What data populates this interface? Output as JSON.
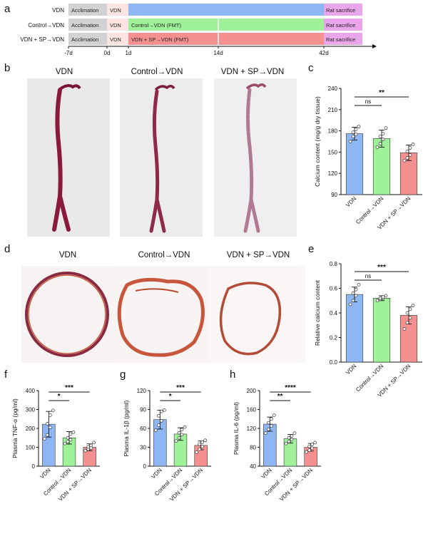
{
  "colors": {
    "vdn": "#8eb6f2",
    "control": "#9ff29a",
    "sp": "#f59090",
    "acclimation": "#d2d2d2",
    "vdn_phase": "#fde4e2",
    "sacrifice": "#e9a6ea",
    "tissue": "#8a1a3c",
    "section_stain": "#c8563c"
  },
  "panel_letters": {
    "a": "a",
    "b": "b",
    "c": "c",
    "d": "d",
    "e": "e",
    "f": "f",
    "g": "g",
    "h": "h"
  },
  "timeline": {
    "rows": [
      {
        "label": "VDN",
        "boxes": [
          "Acclimation",
          "VDN",
          "",
          "Rat sacrifice"
        ]
      },
      {
        "label": "Control→VDN",
        "boxes": [
          "Acclimation",
          "VDN",
          "Control→VDN (FMT)",
          "Rat sacrifice"
        ]
      },
      {
        "label": "VDN + SP→VDN",
        "boxes": [
          "Acclimation",
          "VDN",
          "VDN + SP→VDN (FMT)",
          "Rat sacrifice"
        ]
      }
    ],
    "ticks": [
      "-7d",
      "0d",
      "1d",
      "14d",
      "42d"
    ]
  },
  "images": {
    "b_titles": [
      "VDN",
      "Control→VDN",
      "VDN + SP→VDN"
    ],
    "d_titles": [
      "VDN",
      "Control→VDN",
      "VDN + SP→VDN"
    ]
  },
  "chart_data": [
    {
      "id": "c",
      "type": "bar",
      "categories": [
        "VDN",
        "Control→VDN",
        "VDN + SP→VDN"
      ],
      "values": [
        176,
        169,
        149
      ],
      "errors": [
        9,
        12,
        11
      ],
      "points": [
        [
          165,
          172,
          175,
          178,
          182,
          186
        ],
        [
          157,
          162,
          168,
          172,
          176,
          184
        ],
        [
          138,
          142,
          146,
          151,
          156,
          161
        ]
      ],
      "ylabel": "Calcium content (mg/g dry tissue)",
      "ylim": [
        90,
        240
      ],
      "yticks": [
        "90",
        "120",
        "150",
        "180",
        "210",
        "240"
      ],
      "sig": [
        {
          "from": 0,
          "to": 1,
          "label": "ns"
        },
        {
          "from": 0,
          "to": 2,
          "label": "**"
        }
      ]
    },
    {
      "id": "e",
      "type": "bar",
      "categories": [
        "VDN",
        "Control→VDN",
        "VDN + SP→VDN"
      ],
      "values": [
        0.55,
        0.52,
        0.38
      ],
      "errors": [
        0.06,
        0.02,
        0.07
      ],
      "points": [
        [
          0.47,
          0.5,
          0.54,
          0.56,
          0.59,
          0.63
        ],
        [
          0.5,
          0.51,
          0.52,
          0.52,
          0.53,
          0.54
        ],
        [
          0.27,
          0.32,
          0.36,
          0.4,
          0.43,
          0.46
        ]
      ],
      "ylabel": "Relative calcium content",
      "ylim": [
        0,
        0.8
      ],
      "yticks": [
        "0.0",
        "0.2",
        "0.4",
        "0.6",
        "0.8"
      ],
      "sig": [
        {
          "from": 0,
          "to": 1,
          "label": "ns"
        },
        {
          "from": 0,
          "to": 2,
          "label": "***"
        }
      ]
    },
    {
      "id": "f",
      "type": "bar",
      "categories": [
        "VDN",
        "Control→VDN",
        "VDN + SP→VDN"
      ],
      "values": [
        222,
        150,
        100
      ],
      "errors": [
        68,
        33,
        18
      ],
      "points": [
        [
          145,
          165,
          205,
          225,
          270,
          295
        ],
        [
          120,
          130,
          140,
          150,
          170,
          180
        ],
        [
          82,
          90,
          96,
          102,
          110,
          125
        ]
      ],
      "ylabel": "Plasma TNF-α (pg/ml)",
      "ylim": [
        0,
        400
      ],
      "yticks": [
        "0",
        "100",
        "200",
        "300",
        "400"
      ],
      "sig": [
        {
          "from": 0,
          "to": 1,
          "label": "*"
        },
        {
          "from": 0,
          "to": 2,
          "label": "***"
        }
      ]
    },
    {
      "id": "g",
      "type": "bar",
      "categories": [
        "VDN",
        "Control→VDN",
        "VDN + SP→VDN"
      ],
      "values": [
        74,
        51,
        33
      ],
      "errors": [
        15,
        10,
        7
      ],
      "points": [
        [
          57,
          65,
          72,
          80,
          87,
          89
        ],
        [
          40,
          45,
          50,
          53,
          58,
          62
        ],
        [
          22,
          27,
          31,
          35,
          38,
          41
        ]
      ],
      "ylabel": "Plasma IL-1β (pg/ml)",
      "ylim": [
        0,
        120
      ],
      "yticks": [
        "0",
        "30",
        "60",
        "90",
        "120"
      ],
      "sig": [
        {
          "from": 0,
          "to": 1,
          "label": "*"
        },
        {
          "from": 0,
          "to": 2,
          "label": "***"
        }
      ]
    },
    {
      "id": "h",
      "type": "bar",
      "categories": [
        "VDN",
        "Control→VDN",
        "VDN + SP→VDN"
      ],
      "values": [
        129,
        98,
        80
      ],
      "errors": [
        15,
        9,
        8
      ],
      "points": [
        [
          110,
          118,
          125,
          132,
          140,
          148
        ],
        [
          88,
          92,
          96,
          100,
          104,
          110
        ],
        [
          70,
          74,
          78,
          82,
          86,
          90
        ]
      ],
      "ylabel": "Plasma IL-6 (pg/ml)",
      "ylim": [
        40,
        200
      ],
      "yticks": [
        "40",
        "80",
        "120",
        "160",
        "200"
      ],
      "sig": [
        {
          "from": 0,
          "to": 1,
          "label": "**"
        },
        {
          "from": 0,
          "to": 2,
          "label": "****"
        }
      ]
    }
  ]
}
